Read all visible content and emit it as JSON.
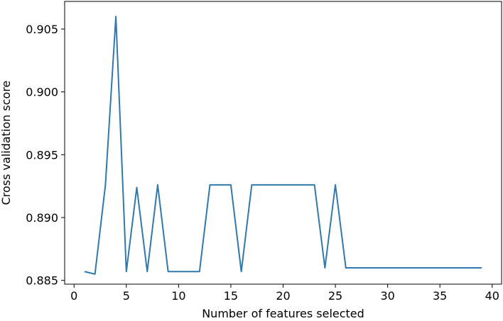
{
  "chart_data": {
    "type": "line",
    "title": "",
    "xlabel": "Number of features selected",
    "ylabel": "Cross validation score",
    "xlim": [
      -0.9,
      40.9
    ],
    "ylim": [
      0.8847,
      0.9072
    ],
    "xticks": [
      0,
      5,
      10,
      15,
      20,
      25,
      30,
      35,
      40
    ],
    "xtick_labels": [
      "0",
      "5",
      "10",
      "15",
      "20",
      "25",
      "30",
      "35",
      "40"
    ],
    "yticks": [
      0.885,
      0.89,
      0.895,
      0.9,
      0.905
    ],
    "ytick_labels": [
      "0.885",
      "0.890",
      "0.895",
      "0.900",
      "0.905"
    ],
    "grid": false,
    "legend": "none",
    "series": [
      {
        "color": "#2f79ad",
        "x": [
          1,
          2,
          3,
          4,
          5,
          6,
          7,
          8,
          9,
          10,
          11,
          12,
          13,
          14,
          15,
          16,
          17,
          18,
          19,
          20,
          21,
          22,
          23,
          24,
          25,
          26,
          27,
          28,
          29,
          30,
          31,
          32,
          33,
          34,
          35,
          36,
          37,
          38,
          39
        ],
        "y": [
          0.8857,
          0.8855,
          0.8926,
          0.906,
          0.8857,
          0.8924,
          0.8857,
          0.8926,
          0.8857,
          0.8857,
          0.8857,
          0.8857,
          0.8926,
          0.8926,
          0.8926,
          0.8857,
          0.8926,
          0.8926,
          0.8926,
          0.8926,
          0.8926,
          0.8926,
          0.8926,
          0.886,
          0.8926,
          0.886,
          0.886,
          0.886,
          0.886,
          0.886,
          0.886,
          0.886,
          0.886,
          0.886,
          0.886,
          0.886,
          0.886,
          0.886,
          0.886
        ]
      }
    ]
  }
}
